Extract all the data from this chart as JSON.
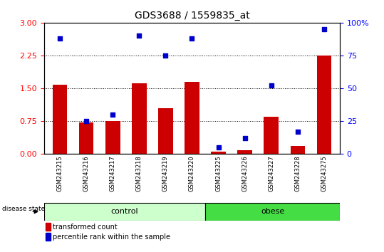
{
  "title": "GDS3688 / 1559835_at",
  "samples": [
    "GSM243215",
    "GSM243216",
    "GSM243217",
    "GSM243218",
    "GSM243219",
    "GSM243220",
    "GSM243225",
    "GSM243226",
    "GSM243227",
    "GSM243228",
    "GSM243275"
  ],
  "transformed_count": [
    1.58,
    0.72,
    0.75,
    1.62,
    1.05,
    1.65,
    0.05,
    0.08,
    0.85,
    0.18,
    2.25
  ],
  "percentile_rank": [
    88,
    25,
    30,
    90,
    75,
    88,
    5,
    12,
    52,
    17,
    95
  ],
  "left_ylim": [
    0,
    3
  ],
  "right_ylim": [
    0,
    100
  ],
  "left_yticks": [
    0,
    0.75,
    1.5,
    2.25,
    3
  ],
  "right_yticks": [
    0,
    25,
    50,
    75,
    100
  ],
  "bar_color": "#cc0000",
  "dot_color": "#0000cc",
  "control_group_count": 6,
  "obese_group_count": 5,
  "control_bg": "#ccffcc",
  "obese_bg": "#44dd44",
  "tick_area_bg": "#cccccc",
  "legend_red_label": "transformed count",
  "legend_blue_label": "percentile rank within the sample",
  "disease_state_label": "disease state",
  "control_label": "control",
  "obese_label": "obese",
  "fig_width": 5.39,
  "fig_height": 3.54,
  "dpi": 100
}
